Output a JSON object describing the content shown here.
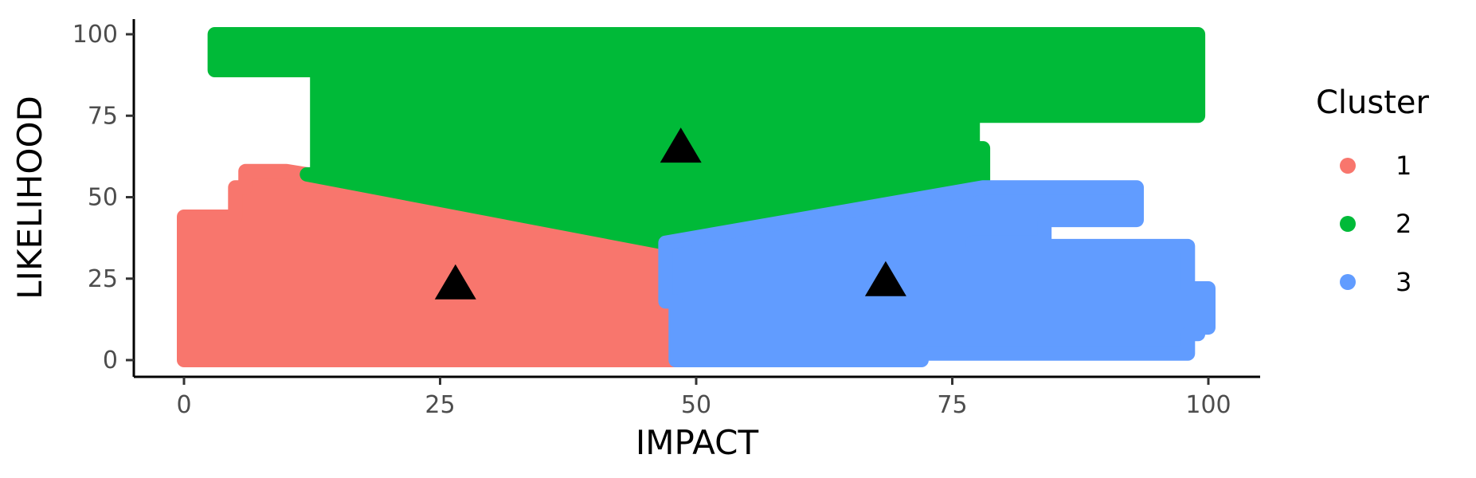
{
  "chart_data": {
    "type": "scatter",
    "title": "",
    "xlabel": "IMPACT",
    "ylabel": "LIKELIHOOD",
    "xlim": [
      -5,
      105
    ],
    "ylim": [
      -5,
      105
    ],
    "x_ticks": [
      0,
      25,
      50,
      75,
      100
    ],
    "y_ticks": [
      0,
      25,
      50,
      75,
      100
    ],
    "x_tick_labels": [
      "0",
      "25",
      "50",
      "75",
      "100"
    ],
    "y_tick_labels": [
      "0",
      "25",
      "50",
      "75",
      "100"
    ],
    "grid": false,
    "legend": {
      "title": "Cluster",
      "position": "right",
      "entries": [
        {
          "label": "1",
          "color": "#F8766D"
        },
        {
          "label": "2",
          "color": "#00BA38"
        },
        {
          "label": "3",
          "color": "#619CFF"
        }
      ]
    },
    "series": [
      {
        "name": "1",
        "color": "#F8766D",
        "region": [
          [
            0,
            0
          ],
          [
            48,
            0
          ],
          [
            48,
            36
          ],
          [
            12,
            57
          ],
          [
            10,
            58
          ],
          [
            6,
            58
          ],
          [
            6,
            53
          ],
          [
            5,
            53
          ],
          [
            5,
            44
          ],
          [
            0,
            44
          ]
        ]
      },
      {
        "name": "2",
        "color": "#00BA38",
        "region": [
          [
            3,
            100
          ],
          [
            99,
            100
          ],
          [
            99,
            75
          ],
          [
            77,
            75
          ],
          [
            77,
            65
          ],
          [
            78,
            65
          ],
          [
            78,
            52
          ],
          [
            47,
            36
          ],
          [
            12,
            57
          ],
          [
            13,
            57
          ],
          [
            13,
            89
          ],
          [
            3,
            89
          ]
        ]
      },
      {
        "name": "3",
        "color": "#619CFF",
        "region": [
          [
            48,
            0
          ],
          [
            72,
            0
          ],
          [
            72,
            2
          ],
          [
            98,
            2
          ],
          [
            98,
            8
          ],
          [
            99,
            8
          ],
          [
            99,
            10
          ],
          [
            100,
            10
          ],
          [
            100,
            22
          ],
          [
            98,
            22
          ],
          [
            98,
            35
          ],
          [
            77,
            35
          ],
          [
            77,
            36
          ],
          [
            84,
            36
          ],
          [
            84,
            43
          ],
          [
            93,
            43
          ],
          [
            93,
            53
          ],
          [
            78,
            53
          ],
          [
            47,
            36
          ],
          [
            47,
            18
          ],
          [
            48,
            18
          ]
        ]
      }
    ],
    "centroids": [
      {
        "cluster": "1",
        "x": 26.5,
        "y": 24
      },
      {
        "cluster": "2",
        "x": 48.5,
        "y": 66
      },
      {
        "cluster": "3",
        "x": 68.5,
        "y": 25
      }
    ]
  }
}
